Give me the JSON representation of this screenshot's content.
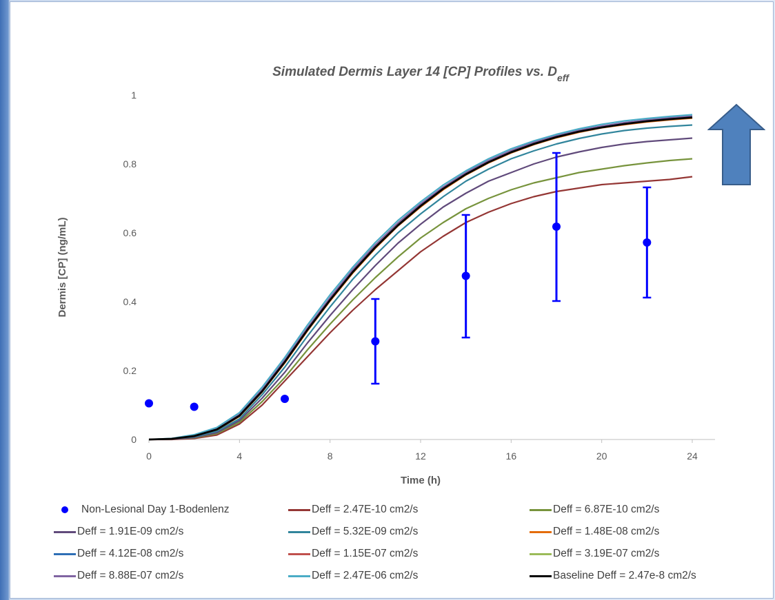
{
  "chart_data": {
    "type": "line",
    "title": "Simulated Dermis Layer 14 [CP] Profiles vs. D",
    "title_subscript": "eff",
    "xlabel": "Time (h)",
    "ylabel": "Dermis [CP] (ng/mL)",
    "xlim": [
      0,
      24
    ],
    "ylim": [
      0,
      1
    ],
    "x_ticks": [
      "0",
      "4",
      "8",
      "12",
      "16",
      "20",
      "24"
    ],
    "y_ticks": [
      "0",
      "0.2",
      "0.4",
      "0.6",
      "0.8",
      "1"
    ],
    "grid": false,
    "legend_position": "bottom",
    "x": [
      0,
      1,
      2,
      3,
      4,
      5,
      6,
      7,
      8,
      9,
      10,
      11,
      12,
      13,
      14,
      15,
      16,
      17,
      18,
      19,
      20,
      21,
      22,
      23,
      24
    ],
    "series": [
      {
        "name": "Deff = 2.47E-10 cm2/s",
        "color": "#943634",
        "values": [
          0,
          0.0,
          0.003,
          0.013,
          0.045,
          0.1,
          0.17,
          0.24,
          0.31,
          0.375,
          0.435,
          0.49,
          0.545,
          0.59,
          0.63,
          0.66,
          0.685,
          0.705,
          0.72,
          0.73,
          0.74,
          0.745,
          0.75,
          0.755,
          0.763
        ]
      },
      {
        "name": "Deff = 6.87E-10 cm2/s",
        "color": "#77933c",
        "values": [
          0,
          0.001,
          0.005,
          0.017,
          0.05,
          0.11,
          0.18,
          0.26,
          0.335,
          0.405,
          0.47,
          0.53,
          0.585,
          0.63,
          0.67,
          0.7,
          0.725,
          0.745,
          0.76,
          0.775,
          0.785,
          0.795,
          0.803,
          0.81,
          0.815
        ]
      },
      {
        "name": "Deff = 1.91E-09 cm2/s",
        "color": "#604a7b",
        "values": [
          0,
          0.001,
          0.006,
          0.02,
          0.055,
          0.12,
          0.195,
          0.28,
          0.36,
          0.435,
          0.505,
          0.57,
          0.625,
          0.675,
          0.715,
          0.75,
          0.775,
          0.8,
          0.82,
          0.835,
          0.848,
          0.858,
          0.865,
          0.87,
          0.875
        ]
      },
      {
        "name": "Deff = 5.32E-09 cm2/s",
        "color": "#31859c",
        "values": [
          0,
          0.002,
          0.008,
          0.024,
          0.06,
          0.13,
          0.21,
          0.3,
          0.385,
          0.465,
          0.535,
          0.6,
          0.655,
          0.705,
          0.75,
          0.785,
          0.815,
          0.838,
          0.858,
          0.874,
          0.887,
          0.897,
          0.904,
          0.909,
          0.913
        ]
      },
      {
        "name": "Deff = 1.48E-08 cm2/s",
        "color": "#e46c0a",
        "values": [
          0,
          0.002,
          0.01,
          0.028,
          0.067,
          0.138,
          0.222,
          0.315,
          0.402,
          0.483,
          0.555,
          0.62,
          0.675,
          0.725,
          0.768,
          0.803,
          0.832,
          0.856,
          0.876,
          0.892,
          0.905,
          0.914,
          0.922,
          0.928,
          0.933
        ]
      },
      {
        "name": "Deff = 4.12E-08 cm2/s",
        "color": "#2e6fb5",
        "values": [
          0,
          0.002,
          0.011,
          0.03,
          0.07,
          0.142,
          0.227,
          0.32,
          0.408,
          0.489,
          0.561,
          0.625,
          0.68,
          0.73,
          0.772,
          0.807,
          0.836,
          0.86,
          0.879,
          0.895,
          0.907,
          0.917,
          0.925,
          0.931,
          0.936
        ]
      },
      {
        "name": "Deff = 1.15E-07 cm2/s",
        "color": "#c0504d",
        "values": [
          0,
          0.002,
          0.011,
          0.03,
          0.071,
          0.143,
          0.229,
          0.322,
          0.41,
          0.491,
          0.563,
          0.627,
          0.682,
          0.731,
          0.773,
          0.808,
          0.837,
          0.861,
          0.88,
          0.896,
          0.908,
          0.918,
          0.926,
          0.932,
          0.937
        ]
      },
      {
        "name": "Deff = 3.19E-07 cm2/s",
        "color": "#9bbb59",
        "values": [
          0,
          0.002,
          0.011,
          0.031,
          0.072,
          0.144,
          0.23,
          0.323,
          0.411,
          0.492,
          0.564,
          0.628,
          0.683,
          0.732,
          0.774,
          0.809,
          0.838,
          0.862,
          0.881,
          0.897,
          0.909,
          0.919,
          0.927,
          0.933,
          0.938
        ]
      },
      {
        "name": "Deff = 8.88E-07 cm2/s",
        "color": "#8064a2",
        "values": [
          0,
          0.002,
          0.012,
          0.031,
          0.073,
          0.145,
          0.231,
          0.324,
          0.412,
          0.493,
          0.565,
          0.629,
          0.684,
          0.733,
          0.775,
          0.81,
          0.839,
          0.863,
          0.882,
          0.898,
          0.91,
          0.92,
          0.928,
          0.934,
          0.939
        ]
      },
      {
        "name": "Deff = 2.47E-06 cm2/s",
        "color": "#4bacc6",
        "values": [
          0,
          0.003,
          0.014,
          0.035,
          0.078,
          0.152,
          0.238,
          0.332,
          0.42,
          0.5,
          0.572,
          0.636,
          0.69,
          0.739,
          0.78,
          0.815,
          0.844,
          0.867,
          0.886,
          0.902,
          0.915,
          0.925,
          0.932,
          0.938,
          0.943
        ]
      },
      {
        "name": "Baseline Deff = 2.47e-8 cm2/s",
        "color": "#000000",
        "values": [
          0,
          0.002,
          0.01,
          0.029,
          0.069,
          0.14,
          0.225,
          0.318,
          0.405,
          0.486,
          0.558,
          0.622,
          0.678,
          0.728,
          0.77,
          0.805,
          0.834,
          0.858,
          0.878,
          0.894,
          0.906,
          0.916,
          0.924,
          0.93,
          0.935
        ]
      }
    ],
    "observed": {
      "name": "Non-Lesional Day 1-Bodenlenz",
      "color": "#0000ff",
      "x": [
        0,
        2,
        6,
        10,
        14,
        18,
        22
      ],
      "y": [
        0.105,
        0.095,
        0.118,
        0.285,
        0.475,
        0.618,
        0.572
      ],
      "err_low": [
        null,
        null,
        null,
        0.162,
        0.296,
        0.402,
        0.412
      ],
      "err_high": [
        null,
        null,
        null,
        0.408,
        0.652,
        0.832,
        0.732
      ]
    }
  },
  "decoration": {
    "arrow_fill": "#4f81bd",
    "arrow_stroke": "#385d8a"
  }
}
